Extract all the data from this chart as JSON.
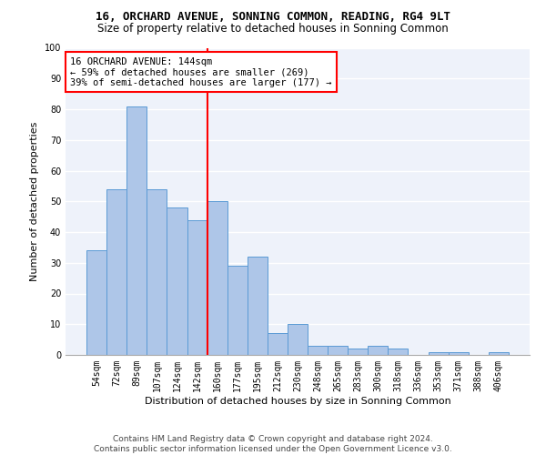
{
  "title1": "16, ORCHARD AVENUE, SONNING COMMON, READING, RG4 9LT",
  "title2": "Size of property relative to detached houses in Sonning Common",
  "xlabel": "Distribution of detached houses by size in Sonning Common",
  "ylabel": "Number of detached properties",
  "footer1": "Contains HM Land Registry data © Crown copyright and database right 2024.",
  "footer2": "Contains public sector information licensed under the Open Government Licence v3.0.",
  "categories": [
    "54sqm",
    "72sqm",
    "89sqm",
    "107sqm",
    "124sqm",
    "142sqm",
    "160sqm",
    "177sqm",
    "195sqm",
    "212sqm",
    "230sqm",
    "248sqm",
    "265sqm",
    "283sqm",
    "300sqm",
    "318sqm",
    "336sqm",
    "353sqm",
    "371sqm",
    "388sqm",
    "406sqm"
  ],
  "values": [
    34,
    54,
    81,
    54,
    48,
    44,
    50,
    29,
    32,
    7,
    10,
    3,
    3,
    2,
    3,
    2,
    0,
    1,
    1,
    0,
    1
  ],
  "bar_color": "#aec6e8",
  "bar_edge_color": "#5b9bd5",
  "vline_index": 5,
  "annotation_text_line1": "16 ORCHARD AVENUE: 144sqm",
  "annotation_text_line2": "← 59% of detached houses are smaller (269)",
  "annotation_text_line3": "39% of semi-detached houses are larger (177) →",
  "annotation_box_color": "white",
  "annotation_box_edge_color": "red",
  "vline_color": "red",
  "ylim": [
    0,
    100
  ],
  "yticks": [
    0,
    10,
    20,
    30,
    40,
    50,
    60,
    70,
    80,
    90,
    100
  ],
  "bg_color": "#eef2fa",
  "grid_color": "white",
  "title1_fontsize": 9,
  "title2_fontsize": 8.5,
  "xlabel_fontsize": 8,
  "ylabel_fontsize": 8,
  "tick_fontsize": 7,
  "annotation_fontsize": 7.5,
  "footer_fontsize": 6.5
}
